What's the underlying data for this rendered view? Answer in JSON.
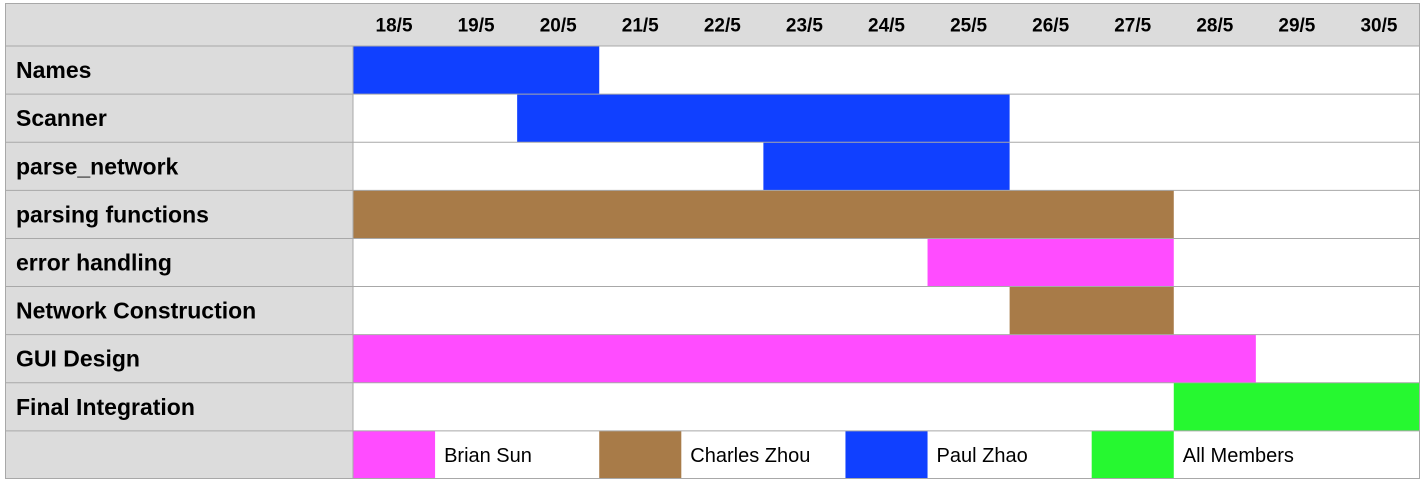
{
  "chart_data": {
    "type": "gantt",
    "title": "",
    "dates": [
      "18/5",
      "19/5",
      "20/5",
      "21/5",
      "22/5",
      "23/5",
      "24/5",
      "25/5",
      "26/5",
      "27/5",
      "28/5",
      "29/5",
      "30/5"
    ],
    "tasks": [
      {
        "name": "Names",
        "start": "18/5",
        "end": "20/5",
        "owner": "Paul Zhao"
      },
      {
        "name": "Scanner",
        "start": "20/5",
        "end": "25/5",
        "owner": "Paul Zhao"
      },
      {
        "name": "parse_network",
        "start": "23/5",
        "end": "25/5",
        "owner": "Paul Zhao"
      },
      {
        "name": "parsing functions",
        "start": "18/5",
        "end": "27/5",
        "owner": "Charles Zhou"
      },
      {
        "name": "error handling",
        "start": "25/5",
        "end": "27/5",
        "owner": "Brian Sun"
      },
      {
        "name": "Network Construction",
        "start": "26/5",
        "end": "27/5",
        "owner": "Charles Zhou"
      },
      {
        "name": "GUI Design",
        "start": "18/5",
        "end": "28/5",
        "owner": "Brian Sun"
      },
      {
        "name": "Final Integration",
        "start": "28/5",
        "end": "30/5",
        "owner": "All Members"
      }
    ],
    "legend": [
      {
        "name": "Brian Sun",
        "color": "#ff4cff"
      },
      {
        "name": "Charles Zhou",
        "color": "#a87b48"
      },
      {
        "name": "Paul Zhao",
        "color": "#1040ff"
      },
      {
        "name": "All Members",
        "color": "#26f830"
      }
    ],
    "legend_position": "bottom",
    "grid": true
  },
  "colors": {
    "header_bg": "#dcdcdc",
    "grid_line": "#a8a8a8",
    "cell_bg": "#ffffff"
  }
}
